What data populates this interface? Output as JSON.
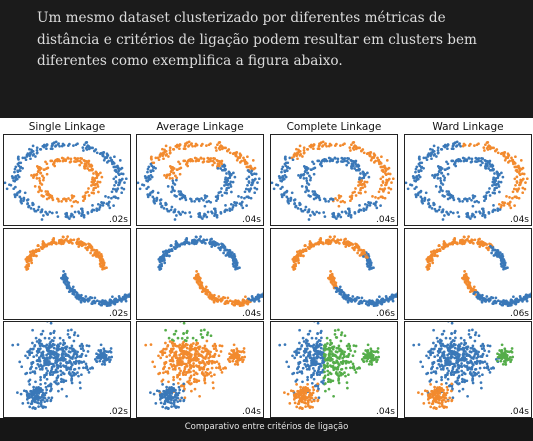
{
  "intro_text": "Um mesmo dataset clusterizado por diferentes métricas de distância e critérios de ligação podem resultar em clusters bem diferentes como exemplifica a figura abaixo.",
  "colors": {
    "blue": "#3a78b8",
    "orange": "#f28a2e",
    "green": "#55ad4a"
  },
  "figure": {
    "columns": [
      "Single Linkage",
      "Average Linkage",
      "Complete Linkage",
      "Ward Linkage"
    ],
    "times": [
      [
        ".02s",
        ".04s",
        ".04s",
        ".04s"
      ],
      [
        ".02s",
        ".04s",
        ".06s",
        ".06s"
      ],
      [
        ".02s",
        ".04s",
        ".04s",
        ".04s"
      ]
    ],
    "rows": [
      "circles",
      "moons",
      "blobs"
    ]
  },
  "caption": "Comparativo entre critérios de ligação"
}
